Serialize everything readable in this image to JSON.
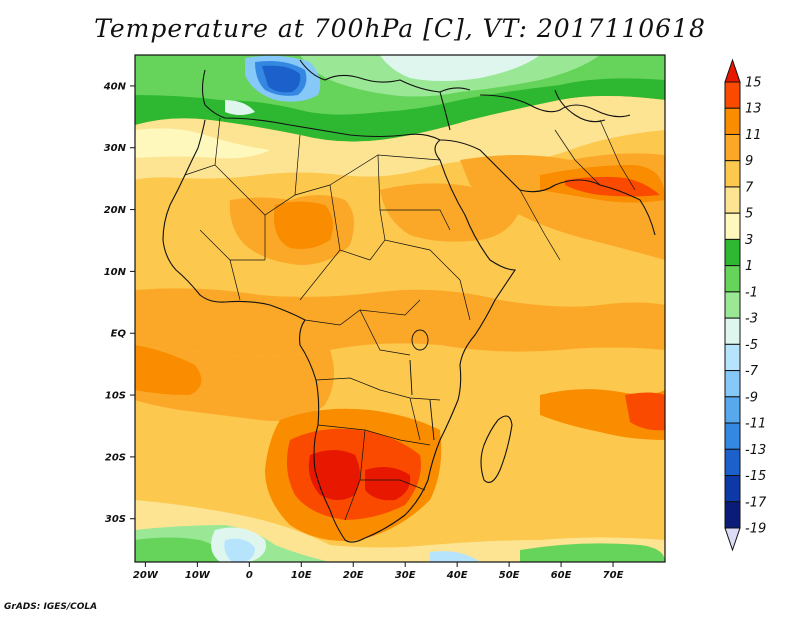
{
  "title": "Temperature at 700hPa [C], VT: 2017110618",
  "credit": "GrADS: IGES/COLA",
  "map": {
    "lon_range": [
      -22,
      80
    ],
    "lat_range": [
      -37,
      45
    ],
    "lon_ticks": [
      {
        "value": -20,
        "label": "20W"
      },
      {
        "value": -10,
        "label": "10W"
      },
      {
        "value": 0,
        "label": "0"
      },
      {
        "value": 10,
        "label": "10E"
      },
      {
        "value": 20,
        "label": "20E"
      },
      {
        "value": 30,
        "label": "30E"
      },
      {
        "value": 40,
        "label": "40E"
      },
      {
        "value": 50,
        "label": "50E"
      },
      {
        "value": 60,
        "label": "60E"
      },
      {
        "value": 70,
        "label": "70E"
      }
    ],
    "lat_ticks": [
      {
        "value": 40,
        "label": "40N"
      },
      {
        "value": 30,
        "label": "30N"
      },
      {
        "value": 20,
        "label": "20N"
      },
      {
        "value": 10,
        "label": "10N"
      },
      {
        "value": 0,
        "label": "EQ"
      },
      {
        "value": -10,
        "label": "10S"
      },
      {
        "value": -20,
        "label": "20S"
      },
      {
        "value": -30,
        "label": "30S"
      }
    ]
  },
  "legend": {
    "labels": [
      "15",
      "13",
      "11",
      "9",
      "7",
      "5",
      "3",
      "1",
      "-1",
      "-3",
      "-5",
      "-7",
      "-9",
      "-11",
      "-13",
      "-15",
      "-17",
      "-19"
    ],
    "colors": [
      "#e81800",
      "#fa4a00",
      "#fa8c00",
      "#fba828",
      "#fcc84e",
      "#fde492",
      "#fef8bc",
      "#2eb832",
      "#66d45a",
      "#9ae896",
      "#dff6ef",
      "#b6e4fc",
      "#86c8f8",
      "#58a8ee",
      "#3488e2",
      "#1c60cc",
      "#0c38a8",
      "#0a1c78",
      "#dcdcf6"
    ]
  }
}
